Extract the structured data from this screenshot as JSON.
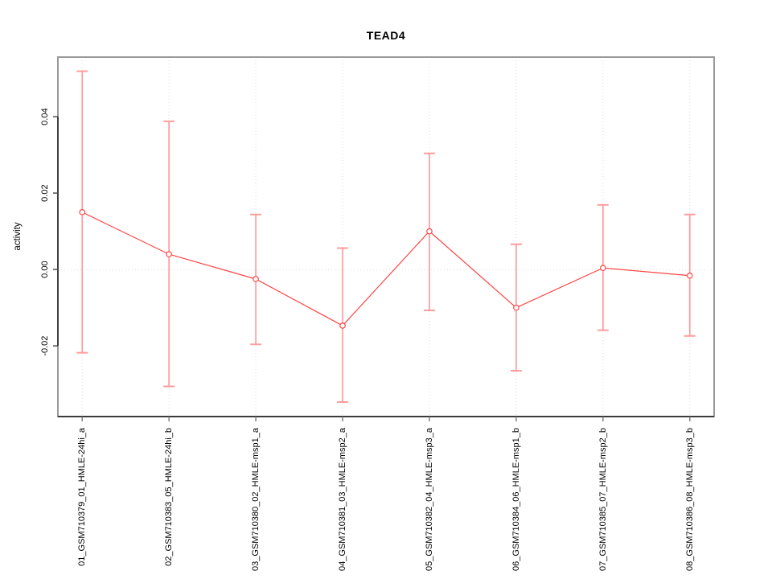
{
  "chart_data": {
    "type": "line",
    "subtype": "points-with-error-bars",
    "title": "TEAD4",
    "xlabel": "",
    "ylabel": "activity",
    "categories": [
      "01_GSM710379_01_HMLE-24hi_a",
      "02_GSM710383_05_HMLE-24hi_b",
      "03_GSM710380_02_HMLE-msp1_a",
      "04_GSM710381_03_HMLE-msp2_a",
      "05_GSM710382_04_HMLE-msp3_a",
      "06_GSM710384_06_HMLE-msp1_b",
      "07_GSM710385_07_HMLE-msp2_b",
      "08_GSM710386_08_HMLE-msp3_b"
    ],
    "series": [
      {
        "name": "activity",
        "values": [
          0.015,
          0.004,
          -0.0025,
          -0.0147,
          0.01,
          -0.01,
          0.0004,
          -0.0016
        ],
        "upper": [
          0.0519,
          0.0388,
          0.0144,
          0.0056,
          0.0304,
          0.0066,
          0.0169,
          0.0144
        ],
        "lower": [
          -0.0218,
          -0.0306,
          -0.0196,
          -0.0347,
          -0.0107,
          -0.0265,
          -0.0159,
          -0.0174
        ]
      }
    ],
    "yticks": [
      -0.02,
      0,
      0.02,
      0.04
    ],
    "ytick_labels": [
      "-0.02",
      "0.00",
      "0.02",
      "0.04"
    ],
    "ylim": [
      -0.0385,
      0.0556
    ],
    "xlim": [
      0.72,
      8.28
    ],
    "grid": {
      "vertical": "dotted line at each category",
      "horizontal": "dotted line at y = 0"
    },
    "legend_position": "none",
    "colors": {
      "point_line": "#ff4545",
      "error_bar": "#ff9c9c",
      "grid": "#dadada",
      "box": "#9a9a9a",
      "axis": "#1a1a1a",
      "tick_y": "#444444",
      "tick_x": "#777777",
      "text": "#000000"
    }
  }
}
